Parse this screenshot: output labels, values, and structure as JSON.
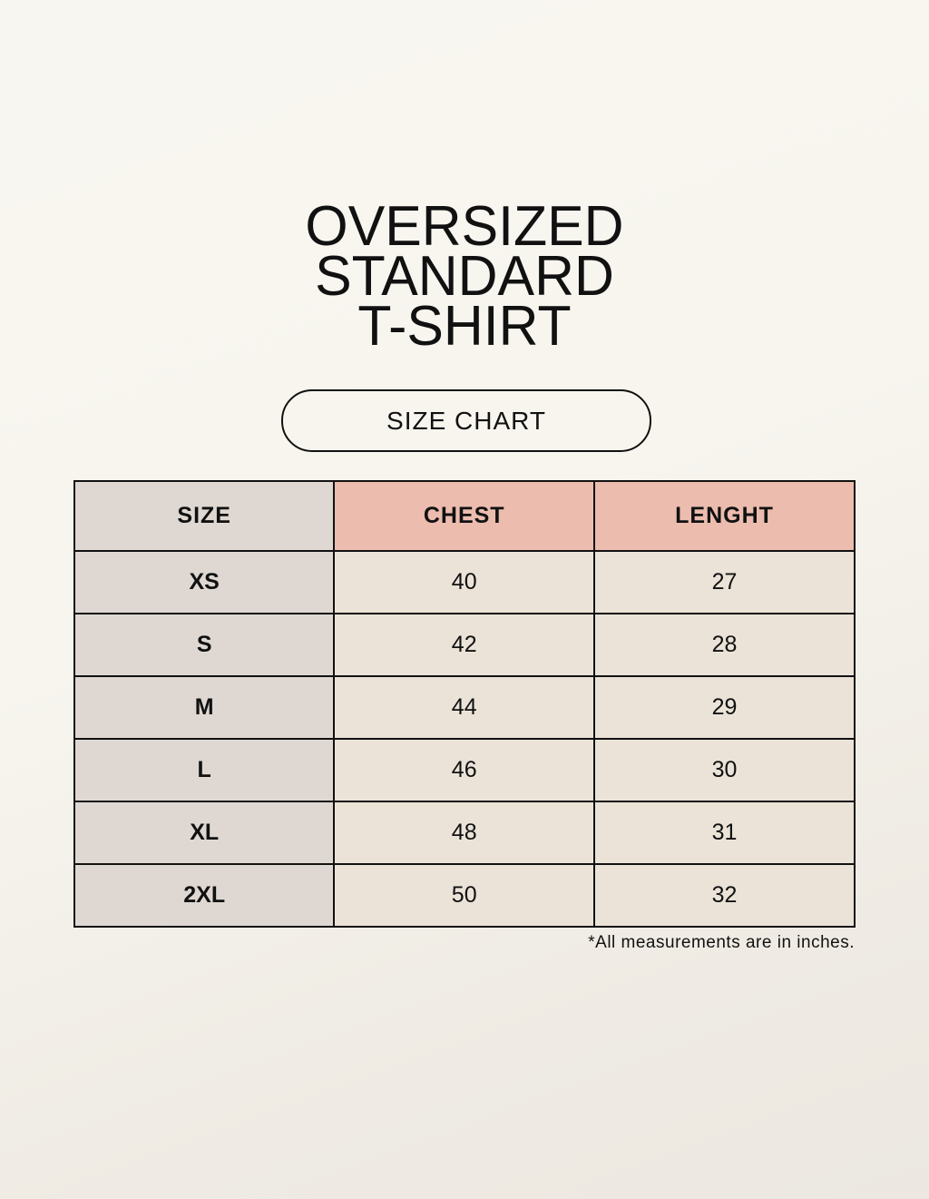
{
  "title": {
    "lines": [
      "OVERSIZED",
      "STANDARD",
      "T-SHIRT"
    ]
  },
  "badge": "SIZE CHART",
  "table": {
    "headers": [
      "SIZE",
      "CHEST",
      "LENGHT"
    ],
    "rows": [
      [
        "XS",
        "40",
        "27"
      ],
      [
        "S",
        "42",
        "28"
      ],
      [
        "M",
        "44",
        "29"
      ],
      [
        "L",
        "46",
        "30"
      ],
      [
        "XL",
        "48",
        "31"
      ],
      [
        "2XL",
        "50",
        "32"
      ]
    ]
  },
  "footnote": "*All measurements are in inches.",
  "colors": {
    "size_column": "#dfd8d2",
    "header_accent": "#ecbcae",
    "body_cells": "#ebe3d8",
    "background": "#f7f5ee"
  }
}
